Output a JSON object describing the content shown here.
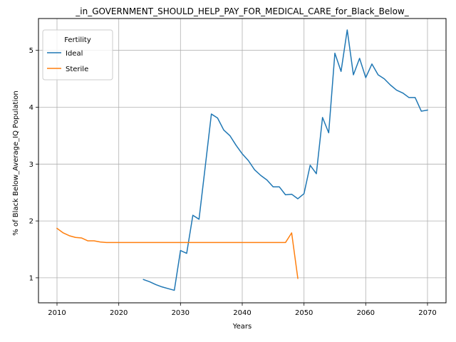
{
  "chart_data": {
    "type": "line",
    "title": "_in_GOVERNMENT_SHOULD_HELP_PAY_FOR_MEDICAL_CARE_for_Black_Below_",
    "xlabel": "Years",
    "ylabel": "% of Black Below_Average_IQ Population",
    "xlim": [
      2007,
      2073
    ],
    "ylim": [
      0.56,
      5.56
    ],
    "xticks": [
      2010,
      2020,
      2030,
      2040,
      2050,
      2060,
      2070
    ],
    "yticks": [
      1,
      2,
      3,
      4,
      5
    ],
    "grid": true,
    "legend": {
      "title": "Fertility",
      "placement": "top-left"
    },
    "series": [
      {
        "name": "Ideal",
        "color": "#1f77b4",
        "x": [
          2024,
          2025,
          2026,
          2027,
          2028,
          2029,
          2030,
          2031,
          2032,
          2033,
          2034,
          2035,
          2036,
          2037,
          2038,
          2039,
          2040,
          2041,
          2042,
          2043,
          2044,
          2045,
          2046,
          2047,
          2048,
          2049,
          2050,
          2051,
          2052,
          2053,
          2054,
          2055,
          2056,
          2057,
          2058,
          2059,
          2060,
          2061,
          2062,
          2063,
          2064,
          2065,
          2066,
          2067,
          2068,
          2069,
          2070
        ],
        "y": [
          0.97,
          0.93,
          0.88,
          0.84,
          0.81,
          0.78,
          1.48,
          1.43,
          2.1,
          2.03,
          2.95,
          3.88,
          3.81,
          3.6,
          3.5,
          3.33,
          3.18,
          3.06,
          2.9,
          2.8,
          2.72,
          2.6,
          2.6,
          2.46,
          2.47,
          2.39,
          2.48,
          2.98,
          2.83,
          3.82,
          3.55,
          4.95,
          4.63,
          5.36,
          4.57,
          4.86,
          4.52,
          4.76,
          4.57,
          4.5,
          4.39,
          4.3,
          4.25,
          4.17,
          4.17,
          3.93,
          3.95
        ]
      },
      {
        "name": "Sterile",
        "color": "#ff7f0e",
        "x": [
          2010,
          2011,
          2012,
          2013,
          2014,
          2015,
          2016,
          2017,
          2018,
          2019,
          2020,
          2021,
          2022,
          2023,
          2024,
          2025,
          2026,
          2027,
          2028,
          2029,
          2030,
          2031,
          2032,
          2033,
          2034,
          2035,
          2036,
          2037,
          2038,
          2039,
          2040,
          2041,
          2042,
          2043,
          2044,
          2045,
          2046,
          2047,
          2048,
          2049
        ],
        "y": [
          1.87,
          1.79,
          1.74,
          1.71,
          1.7,
          1.65,
          1.65,
          1.63,
          1.62,
          1.62,
          1.62,
          1.62,
          1.62,
          1.62,
          1.62,
          1.62,
          1.62,
          1.62,
          1.62,
          1.62,
          1.62,
          1.62,
          1.62,
          1.62,
          1.62,
          1.62,
          1.62,
          1.62,
          1.62,
          1.62,
          1.62,
          1.62,
          1.62,
          1.62,
          1.62,
          1.62,
          1.62,
          1.62,
          1.79,
          0.99
        ]
      }
    ]
  }
}
